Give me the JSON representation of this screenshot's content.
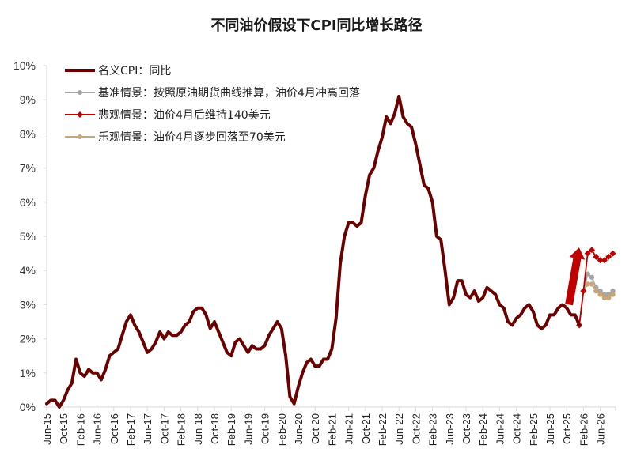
{
  "chart_data": {
    "type": "line",
    "title": "不同油价假设下CPI同比增长路径",
    "xlabel": "",
    "ylabel": "",
    "ylim": [
      0,
      10
    ],
    "y_ticks": [
      "0%",
      "1%",
      "2%",
      "3%",
      "4%",
      "5%",
      "6%",
      "7%",
      "8%",
      "9%",
      "10%"
    ],
    "x_ticks": [
      "Jun-15",
      "Oct-15",
      "Feb-16",
      "Jun-16",
      "Oct-16",
      "Feb-17",
      "Jun-17",
      "Oct-17",
      "Feb-18",
      "Jun-18",
      "Oct-18",
      "Feb-19",
      "Jun-19",
      "Oct-19",
      "Feb-20",
      "Jun-20",
      "Oct-20",
      "Feb-21",
      "Jun-21",
      "Oct-21",
      "Feb-22",
      "Jun-22",
      "Oct-22",
      "Feb-23",
      "Jun-23",
      "Oct-23",
      "Feb-24",
      "Jun-24",
      "Oct-24",
      "Feb-25",
      "Jun-25",
      "Oct-25",
      "Feb-26",
      "Jun-26"
    ],
    "grid": false,
    "legend_position": "top-left",
    "series": [
      {
        "name": "名义CPI：同比",
        "color": "#6b0000",
        "marker": "none",
        "start": "Jun-15",
        "values": [
          0.1,
          0.2,
          0.2,
          0.0,
          0.2,
          0.5,
          0.7,
          1.4,
          1.0,
          0.9,
          1.1,
          1.0,
          1.0,
          0.8,
          1.1,
          1.5,
          1.6,
          1.7,
          2.1,
          2.5,
          2.7,
          2.4,
          2.2,
          1.9,
          1.6,
          1.7,
          1.9,
          2.2,
          2.0,
          2.2,
          2.1,
          2.1,
          2.2,
          2.4,
          2.5,
          2.8,
          2.9,
          2.9,
          2.7,
          2.3,
          2.5,
          2.2,
          1.9,
          1.6,
          1.5,
          1.9,
          2.0,
          1.8,
          1.6,
          1.8,
          1.7,
          1.7,
          1.8,
          2.1,
          2.3,
          2.5,
          2.3,
          1.5,
          0.3,
          0.1,
          0.6,
          1.0,
          1.3,
          1.4,
          1.2,
          1.2,
          1.4,
          1.4,
          1.7,
          2.6,
          4.2,
          5.0,
          5.4,
          5.4,
          5.3,
          5.4,
          6.2,
          6.8,
          7.0,
          7.5,
          7.9,
          8.5,
          8.3,
          8.6,
          9.1,
          8.5,
          8.3,
          8.2,
          7.7,
          7.1,
          6.5,
          6.4,
          6.0,
          5.0,
          4.9,
          4.0,
          3.0,
          3.2,
          3.7,
          3.7,
          3.3,
          3.2,
          3.4,
          3.1,
          3.2,
          3.5,
          3.4,
          3.3,
          3.0,
          2.9,
          2.5,
          2.4,
          2.6,
          2.7,
          2.9,
          3.0,
          2.8,
          2.4,
          2.3,
          2.4,
          2.7,
          2.7,
          2.9,
          3.0,
          2.9,
          2.7,
          2.7,
          2.4
        ]
      },
      {
        "name": "基准情景：按照原油期货曲线推算，油价4月冲高回落",
        "color": "#a6a6a6",
        "marker": "circle",
        "start": "Jan-26",
        "values": [
          2.4,
          3.4,
          3.9,
          3.8,
          3.5,
          3.4,
          3.3,
          3.3,
          3.4
        ]
      },
      {
        "name": "悲观情景：油价4月后维持140美元",
        "color": "#c00000",
        "marker": "diamond",
        "start": "Jan-26",
        "values": [
          2.4,
          3.4,
          4.5,
          4.6,
          4.4,
          4.3,
          4.3,
          4.4,
          4.5
        ]
      },
      {
        "name": "乐观情景：油价4月逐步回落至70美元",
        "color": "#c9a57a",
        "marker": "circle",
        "start": "Jan-26",
        "values": [
          2.4,
          3.4,
          3.6,
          3.6,
          3.4,
          3.3,
          3.2,
          3.2,
          3.3
        ]
      }
    ],
    "annotations": [
      {
        "type": "arrow",
        "direction": "up",
        "color": "#c00000",
        "near": "Jan-26",
        "from_value": 3.0,
        "to_value": 4.7
      }
    ]
  },
  "title": "不同油价假设下CPI同比增长路径",
  "legend": [
    {
      "label": "名义CPI：同比",
      "color": "#6b0000",
      "marker": "none"
    },
    {
      "label": "基准情景：按照原油期货曲线推算，油价4月冲高回落",
      "color": "#a6a6a6",
      "marker": "circle"
    },
    {
      "label": "悲观情景：油价4月后维持140美元",
      "color": "#c00000",
      "marker": "diamond"
    },
    {
      "label": "乐观情景：油价4月逐步回落至70美元",
      "color": "#c9a57a",
      "marker": "circle"
    }
  ]
}
